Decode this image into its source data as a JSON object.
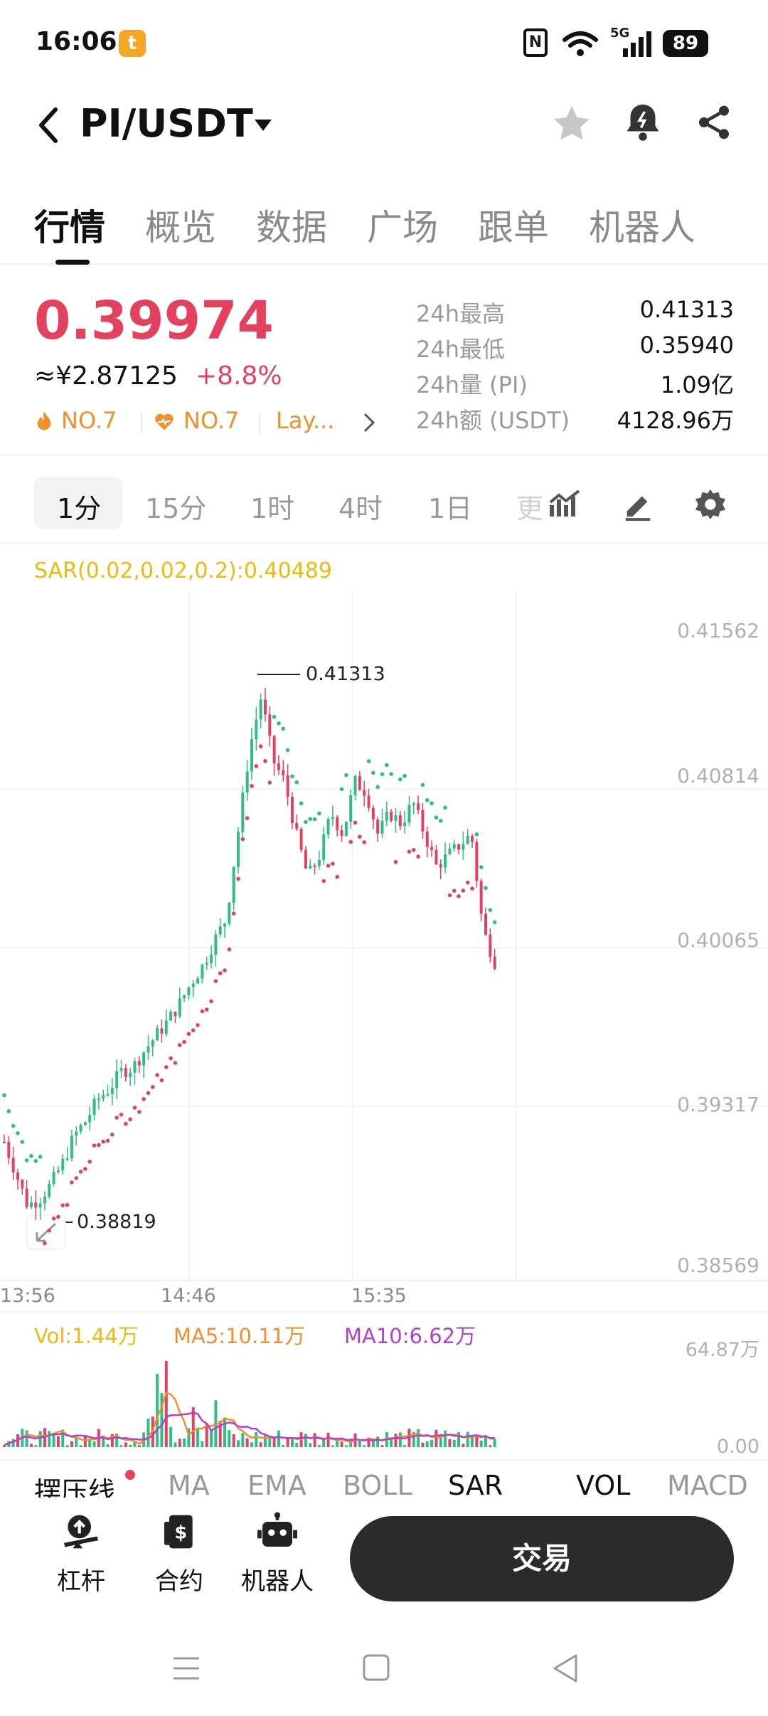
{
  "status_bar": {
    "time": "16:06",
    "app_badge": "t",
    "nfc": "N",
    "network": "5G",
    "battery": "89"
  },
  "header": {
    "pair": "PI/USDT",
    "icons": [
      "back-arrow-icon",
      "caret-down-icon",
      "star-icon",
      "alert-bell-icon",
      "share-icon"
    ]
  },
  "tabs": [
    "行情",
    "概览",
    "数据",
    "广场",
    "跟单",
    "机器人"
  ],
  "price": {
    "last": "0.39974",
    "cny": "≈¥2.87125",
    "change": "+8.8%",
    "rank_hot": "NO.7",
    "rank_trend": "NO.7",
    "tag": "Lay...",
    "stats": [
      {
        "label": "24h最高",
        "value": "0.41313"
      },
      {
        "label": "24h最低",
        "value": "0.35940"
      },
      {
        "label": "24h量 (PI)",
        "value": "1.09亿"
      },
      {
        "label": "24h额 (USDT)",
        "value": "4128.96万"
      }
    ]
  },
  "intervals": [
    "1分",
    "15分",
    "1时",
    "4时",
    "1日",
    "更"
  ],
  "colors": {
    "up": "#2ebd85",
    "down": "#e3415e",
    "sar": "#f0b90b",
    "ma5": "#f0902c",
    "ma10": "#b43fd0"
  },
  "chart_data": {
    "type": "candlestick",
    "indicator_label": "SAR(0.02,0.02,0.2):0.40489",
    "y_ticks": [
      "0.41562",
      "0.40814",
      "0.40065",
      "0.39317",
      "0.38569"
    ],
    "x_ticks": [
      "13:56",
      "14:46",
      "15:35"
    ],
    "high_label": "0.41313",
    "low_label": "0.38819",
    "close_path": [
      0.3915,
      0.39,
      0.3885,
      0.3888,
      0.3895,
      0.3905,
      0.3918,
      0.3925,
      0.3935,
      0.394,
      0.3948,
      0.395,
      0.3958,
      0.3965,
      0.3972,
      0.398,
      0.399,
      0.3998,
      0.401,
      0.402,
      0.406,
      0.41,
      0.4125,
      0.4095,
      0.4085,
      0.406,
      0.404,
      0.405,
      0.407,
      0.406,
      0.4085,
      0.408,
      0.406,
      0.407,
      0.4065,
      0.4075,
      0.406,
      0.4045,
      0.405,
      0.4055,
      0.406,
      0.4015,
      0.4
    ]
  },
  "volume": {
    "vol": "Vol:1.44万",
    "ma5": "MA5:10.11万",
    "ma10": "MA10:6.62万",
    "max_tick": "64.87万",
    "min_tick": "0.00"
  },
  "indicator_tabs": [
    "摆压线",
    "MA",
    "EMA",
    "BOLL",
    "SAR",
    "VOL",
    "MACD"
  ],
  "bottom_nav": [
    {
      "label": "杠杆",
      "icon": "leverage-icon"
    },
    {
      "label": "合约",
      "icon": "contract-icon"
    },
    {
      "label": "机器人",
      "icon": "robot-icon"
    }
  ],
  "trade_button": "交易"
}
